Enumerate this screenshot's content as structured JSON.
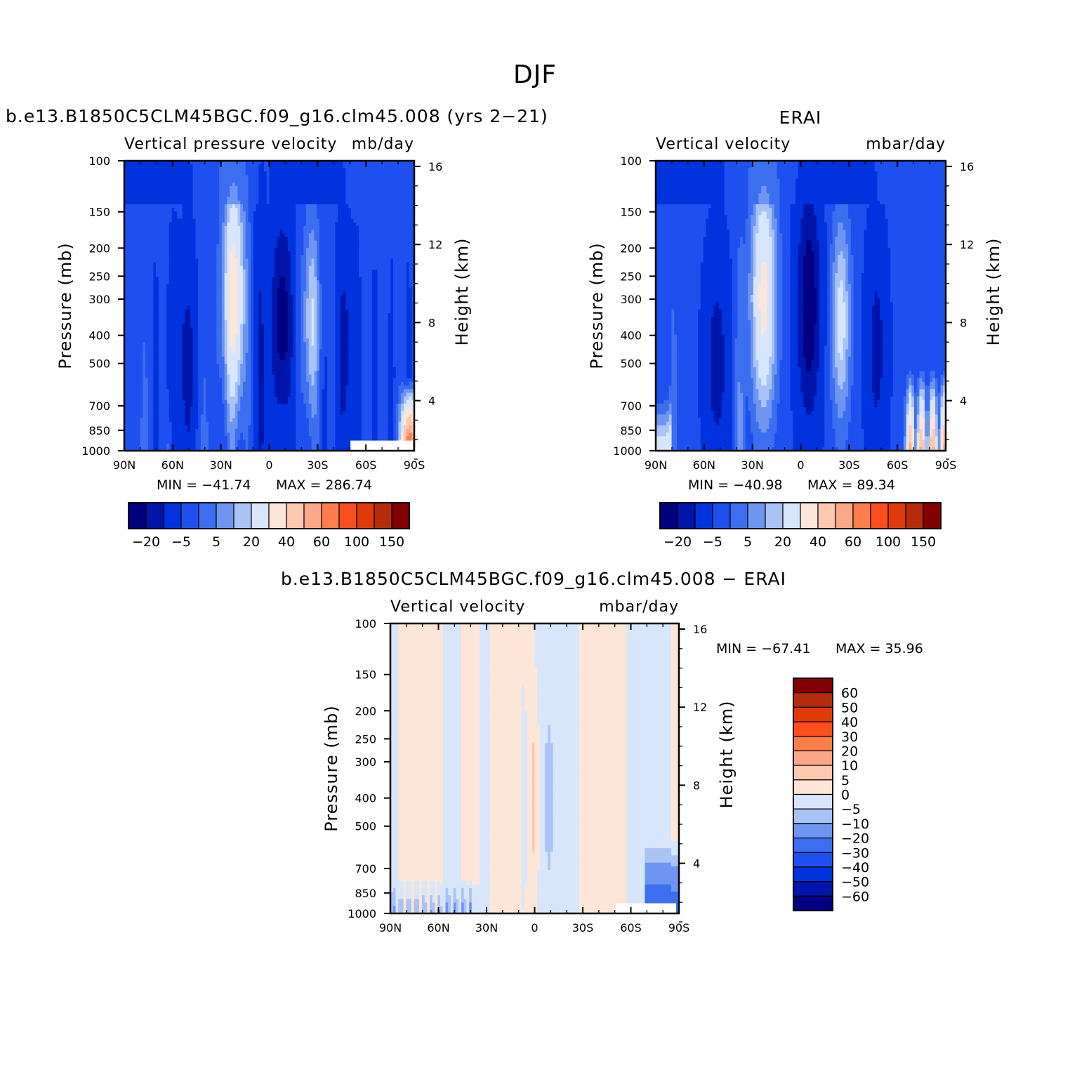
{
  "figure": {
    "title": "DJF",
    "colors": {
      "model_levels": [
        "#000080",
        "#0015aa",
        "#0033dd",
        "#1e50f0",
        "#3c6ef0",
        "#6e96f0",
        "#aac3f5",
        "#d7e6fa",
        "#fde6d7",
        "#fdc8ad",
        "#fca888",
        "#fd7d4b",
        "#fd4f1e",
        "#e03a0a",
        "#b42c0a",
        "#820000"
      ],
      "diff_levels": [
        "#000080",
        "#0015aa",
        "#0033dd",
        "#1e50f0",
        "#3c6ef0",
        "#6e96f0",
        "#aac3f5",
        "#d7e6fa",
        "#fde6d7",
        "#fdc8ad",
        "#fca888",
        "#fd7d4b",
        "#fd4f1e",
        "#e03a0a",
        "#b42c0a",
        "#820000"
      ]
    }
  },
  "chart_data": [
    {
      "type": "heatmap",
      "id": "model",
      "title": "b.e13.B1850C5CLM45BGC.f09_g16.clm45.008 (yrs 2−21)",
      "variable_label": "Vertical pressure velocity",
      "units": "mb/day",
      "xlabel": "",
      "ylabel": "Pressure (mb)",
      "y2label": "Height (km)",
      "x_ticks": [
        "90N",
        "60N",
        "30N",
        "0",
        "30S",
        "60S",
        "90S"
      ],
      "x_range": [
        90,
        -90
      ],
      "y_ticks": [
        100,
        150,
        200,
        250,
        300,
        400,
        500,
        700,
        850,
        1000
      ],
      "y_range": [
        100,
        1000
      ],
      "y_scale": "log",
      "y2_ticks": [
        16,
        12,
        8,
        4
      ],
      "min_label": "MIN = −41.74",
      "max_label": "MAX = 286.74",
      "colorbar": {
        "orientation": "horizontal",
        "labels": [
          "−20",
          "−5",
          "5",
          "20",
          "40",
          "60",
          "100",
          "150"
        ]
      }
    },
    {
      "type": "heatmap",
      "id": "obs",
      "title": "ERAI",
      "variable_label": "Vertical velocity",
      "units": "mbar/day",
      "xlabel": "",
      "ylabel": "Pressure (mb)",
      "y2label": "Height (km)",
      "x_ticks": [
        "90N",
        "60N",
        "30N",
        "0",
        "30S",
        "60S",
        "90S"
      ],
      "x_range": [
        90,
        -90
      ],
      "y_ticks": [
        100,
        150,
        200,
        250,
        300,
        400,
        500,
        700,
        850,
        1000
      ],
      "y_range": [
        100,
        1000
      ],
      "y_scale": "log",
      "y2_ticks": [
        16,
        12,
        8,
        4
      ],
      "min_label": "MIN = −40.98",
      "max_label": "MAX =  89.34",
      "colorbar": {
        "orientation": "horizontal",
        "labels": [
          "−20",
          "−5",
          "5",
          "20",
          "40",
          "60",
          "100",
          "150"
        ]
      }
    },
    {
      "type": "heatmap",
      "id": "diff",
      "title": "b.e13.B1850C5CLM45BGC.f09_g16.clm45.008 − ERAI",
      "variable_label": "Vertical velocity",
      "units": "mbar/day",
      "xlabel": "",
      "ylabel": "Pressure (mb)",
      "y2label": "Height (km)",
      "x_ticks": [
        "90N",
        "60N",
        "30N",
        "0",
        "30S",
        "60S",
        "90S"
      ],
      "x_range": [
        90,
        -90
      ],
      "y_ticks": [
        100,
        150,
        200,
        250,
        300,
        400,
        500,
        700,
        850,
        1000
      ],
      "y_range": [
        100,
        1000
      ],
      "y_scale": "log",
      "y2_ticks": [
        16,
        12,
        8,
        4
      ],
      "min_label": "MIN = −67.41",
      "max_label": "MAX =  35.96",
      "colorbar": {
        "orientation": "vertical",
        "labels": [
          "60",
          "50",
          "40",
          "30",
          "20",
          "10",
          "5",
          "0",
          "−5",
          "−10",
          "−20",
          "−30",
          "−40",
          "−50",
          "−60"
        ]
      }
    }
  ]
}
